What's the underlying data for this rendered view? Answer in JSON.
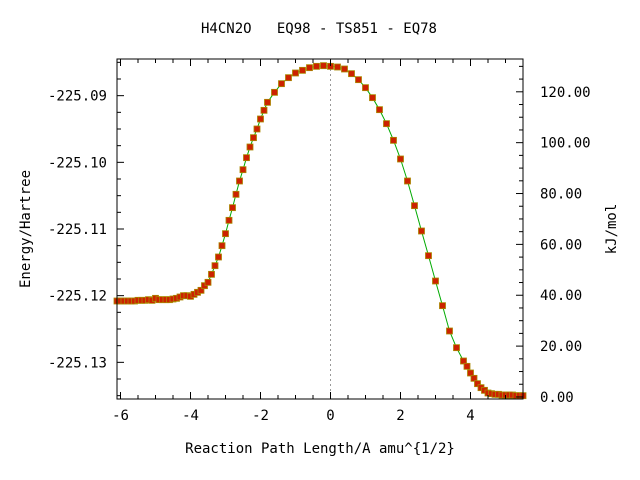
{
  "chart_data": {
    "type": "line",
    "title": "H4CN2O   EQ98 - TS851 - EQ78",
    "xlabel": "Reaction Path Length/A amu^{1/2}",
    "ylabel": "Energy/Hartree",
    "y2label": "kJ/mol",
    "xlim": [
      -6.1,
      5.5
    ],
    "ylim": [
      -225.1355,
      -225.0845
    ],
    "y2lim": [
      -0.8,
      132.9
    ],
    "x_ticks": [
      "-6",
      "-4",
      "-2",
      "0",
      "2",
      "4"
    ],
    "x_tick_values": [
      -6,
      -4,
      -2,
      0,
      2,
      4
    ],
    "y_ticks": [
      "-225.09",
      "-225.10",
      "-225.11",
      "-225.12",
      "-225.13"
    ],
    "y_tick_values": [
      -225.09,
      -225.1,
      -225.11,
      -225.12,
      -225.13
    ],
    "y2_ticks": [
      "120.00",
      "100.00",
      "80.00",
      "60.00",
      "40.00",
      "20.00",
      "0.00"
    ],
    "y2_tick_values": [
      120,
      100,
      80,
      60,
      40,
      20,
      0
    ],
    "ts_x": 0.0,
    "line_color": "#00aa00",
    "marker_color": "#cc2200",
    "marker_edge_color": "#aa8800",
    "ts_line_color": "#999999",
    "series": [
      {
        "x": [
          -6.1,
          -6.0,
          -5.9,
          -5.8,
          -5.7,
          -5.6,
          -5.5,
          -5.4,
          -5.3,
          -5.2,
          -5.1,
          -5.0,
          -4.9,
          -4.8,
          -4.7,
          -4.6,
          -4.5,
          -4.4,
          -4.3,
          -4.2,
          -4.1,
          -4.0,
          -3.9,
          -3.8,
          -3.7,
          -3.6,
          -3.5,
          -3.4,
          -3.3,
          -3.2,
          -3.1,
          -3.0,
          -2.9,
          -2.8,
          -2.7,
          -2.6,
          -2.5,
          -2.4,
          -2.3,
          -2.2,
          -2.1,
          -2.0,
          -1.9,
          -1.8,
          -1.6,
          -1.4,
          -1.2,
          -1.0,
          -0.8,
          -0.6,
          -0.4,
          -0.2,
          0.0,
          0.2,
          0.4,
          0.6,
          0.8,
          1.0,
          1.2,
          1.4,
          1.6,
          1.8,
          2.0,
          2.2,
          2.4,
          2.6,
          2.8,
          3.0,
          3.2,
          3.4,
          3.6,
          3.8,
          3.9,
          4.0,
          4.1,
          4.2,
          4.3,
          4.4,
          4.5,
          4.6,
          4.7,
          4.8,
          4.9,
          5.0,
          5.1,
          5.2,
          5.3,
          5.4,
          5.5
        ],
        "y": [
          -225.1208,
          -225.1208,
          -225.1208,
          -225.1208,
          -225.1208,
          -225.1208,
          -225.1207,
          -225.1207,
          -225.1207,
          -225.1206,
          -225.1207,
          -225.1204,
          -225.1206,
          -225.1206,
          -225.1206,
          -225.1206,
          -225.1205,
          -225.1204,
          -225.1202,
          -225.12,
          -225.12,
          -225.1201,
          -225.1198,
          -225.1195,
          -225.1192,
          -225.1185,
          -225.118,
          -225.1168,
          -225.1155,
          -225.1142,
          -225.1125,
          -225.1107,
          -225.1087,
          -225.1068,
          -225.1048,
          -225.1028,
          -225.1011,
          -225.0993,
          -225.0977,
          -225.0963,
          -225.095,
          -225.0935,
          -225.0922,
          -225.091,
          -225.0895,
          -225.0882,
          -225.0873,
          -225.0866,
          -225.0862,
          -225.0858,
          -225.0856,
          -225.0855,
          -225.0856,
          -225.0857,
          -225.086,
          -225.0867,
          -225.0876,
          -225.0888,
          -225.0903,
          -225.0921,
          -225.0942,
          -225.0967,
          -225.0995,
          -225.1028,
          -225.1065,
          -225.1103,
          -225.114,
          -225.1178,
          -225.1215,
          -225.1253,
          -225.1278,
          -225.1298,
          -225.1306,
          -225.1316,
          -225.1324,
          -225.1332,
          -225.1338,
          -225.1342,
          -225.1346,
          -225.1347,
          -225.1348,
          -225.1348,
          -225.1349,
          -225.1349,
          -225.1349,
          -225.1349,
          -225.135,
          -225.135,
          -225.135
        ]
      }
    ]
  }
}
